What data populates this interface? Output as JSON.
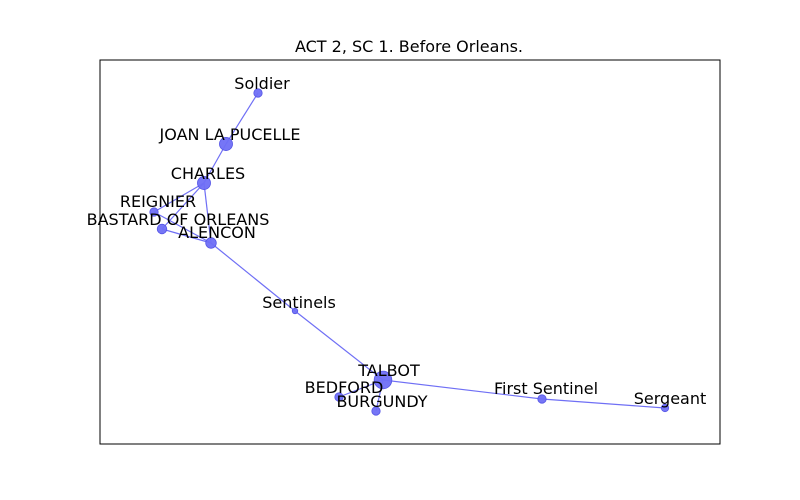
{
  "chart_data": {
    "type": "network",
    "title": "ACT 2, SC 1. Before Orleans.",
    "nodes": [
      {
        "id": "Soldier",
        "label": "Soldier",
        "weight": 1
      },
      {
        "id": "JOAN LA PUCELLE",
        "label": "JOAN LA PUCELLE",
        "weight": 3
      },
      {
        "id": "CHARLES",
        "label": "CHARLES",
        "weight": 3
      },
      {
        "id": "REIGNIER",
        "label": "REIGNIER",
        "weight": 1
      },
      {
        "id": "BASTARD OF ORLEANS",
        "label": "BASTARD OF ORLEANS",
        "weight": 1.4
      },
      {
        "id": "ALENCON",
        "label": "ALENCON",
        "weight": 1.8
      },
      {
        "id": "Sentinels",
        "label": "Sentinels",
        "weight": 0.3
      },
      {
        "id": "TALBOT",
        "label": "TALBOT",
        "weight": 6
      },
      {
        "id": "BEDFORD",
        "label": "BEDFORD",
        "weight": 1
      },
      {
        "id": "BURGUNDY",
        "label": "BURGUNDY",
        "weight": 1
      },
      {
        "id": "First Sentinel",
        "label": "First Sentinel",
        "weight": 1
      },
      {
        "id": "Sergeant",
        "label": "Sergeant",
        "weight": 0.7
      }
    ],
    "edges": [
      [
        "Soldier",
        "JOAN LA PUCELLE"
      ],
      [
        "JOAN LA PUCELLE",
        "CHARLES"
      ],
      [
        "CHARLES",
        "REIGNIER"
      ],
      [
        "CHARLES",
        "BASTARD OF ORLEANS"
      ],
      [
        "CHARLES",
        "ALENCON"
      ],
      [
        "REIGNIER",
        "ALENCON"
      ],
      [
        "BASTARD OF ORLEANS",
        "ALENCON"
      ],
      [
        "ALENCON",
        "Sentinels"
      ],
      [
        "Sentinels",
        "TALBOT"
      ],
      [
        "TALBOT",
        "BEDFORD"
      ],
      [
        "TALBOT",
        "BURGUNDY"
      ],
      [
        "TALBOT",
        "First Sentinel"
      ],
      [
        "First Sentinel",
        "Sergeant"
      ]
    ],
    "node_color": "#6f6ff5",
    "edge_color": "#6f6ff5",
    "grid": false,
    "legend": "none"
  }
}
